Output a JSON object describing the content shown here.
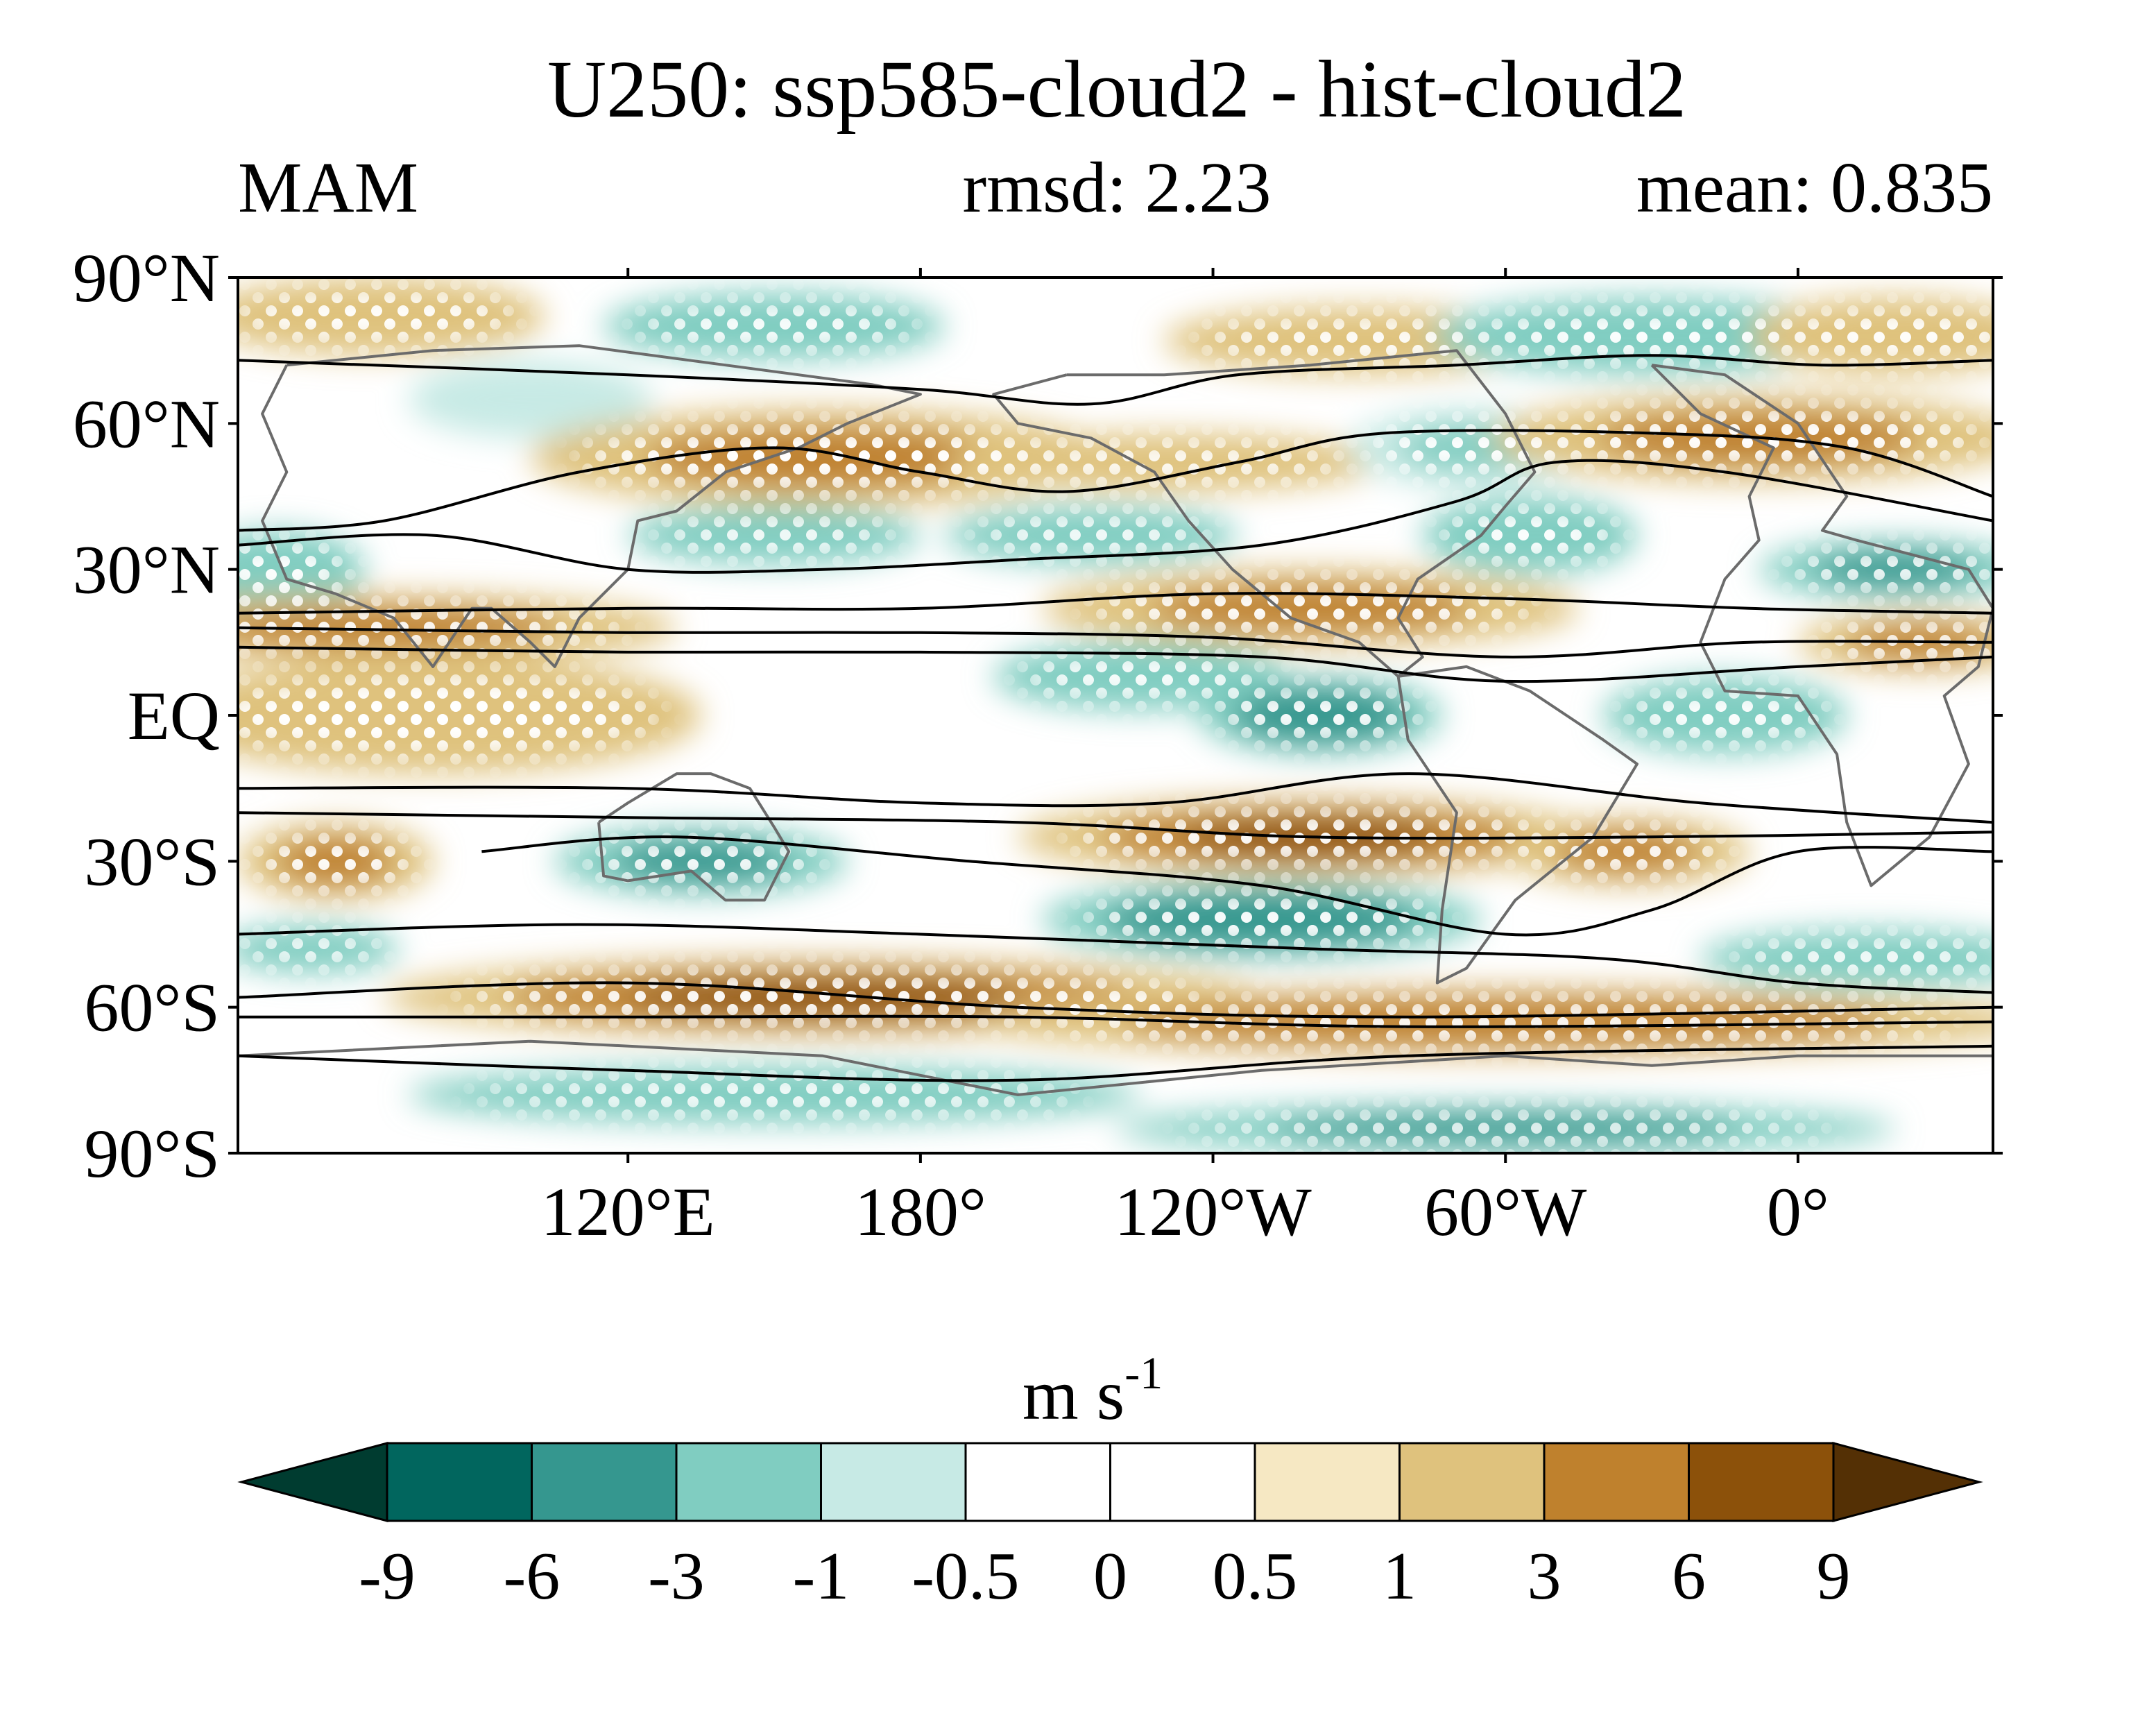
{
  "title": "U250: ssp585-cloud2 - hist-cloud2",
  "season": "MAM",
  "rmsd_label": "rmsd: 2.23",
  "mean_label": "mean: 0.835",
  "map": {
    "lat_ticks": [
      "90°N",
      "60°N",
      "30°N",
      "EQ",
      "30°S",
      "60°S",
      "90°S"
    ],
    "lon_ticks": [
      "120°E",
      "180°",
      "120°W",
      "60°W",
      "0°"
    ],
    "lon_range": [
      40,
      400
    ],
    "lat_range": [
      -90,
      90
    ],
    "stippling": "white dots mark significant areas",
    "contours": "black lines: climatological zonal wind"
  },
  "colorbar": {
    "unit_base": "m s",
    "unit_exp": "-1",
    "labels": [
      "-9",
      "-6",
      "-3",
      "-1",
      "-0.5",
      "0",
      "0.5",
      "1",
      "3",
      "6",
      "9"
    ],
    "colors": [
      "#003c30",
      "#01665e",
      "#35978f",
      "#80cdc1",
      "#c7eae5",
      "#ffffff",
      "#ffffff",
      "#f6e8c3",
      "#dfc27d",
      "#bf812d",
      "#8c510a",
      "#543005"
    ]
  },
  "chart_data": {
    "type": "heatmap",
    "title": "U250: ssp585-cloud2 - hist-cloud2",
    "subtitle_left": "MAM",
    "subtitle_center": "rmsd: 2.23",
    "subtitle_right": "mean: 0.835",
    "xlabel": "",
    "ylabel": "",
    "x_ticks": [
      "120°E",
      "180°",
      "120°W",
      "60°W",
      "0°"
    ],
    "y_ticks": [
      "90°N",
      "60°N",
      "30°N",
      "EQ",
      "30°S",
      "60°S",
      "90°S"
    ],
    "colorbar_levels": [
      -9,
      -6,
      -3,
      -1,
      -0.5,
      0,
      0.5,
      1,
      3,
      6,
      9
    ],
    "colorbar_unit": "m s-1",
    "anomaly_blobs": [
      {
        "lon": 68,
        "lat": 82,
        "w": 35,
        "h": 8,
        "v": 2
      },
      {
        "lon": 150,
        "lat": 80,
        "w": 35,
        "h": 7,
        "v": -2
      },
      {
        "lon": 270,
        "lat": 77,
        "w": 40,
        "h": 7,
        "v": 2
      },
      {
        "lon": 330,
        "lat": 78,
        "w": 45,
        "h": 8,
        "v": -2
      },
      {
        "lon": 380,
        "lat": 78,
        "w": 30,
        "h": 8,
        "v": 2
      },
      {
        "lon": 100,
        "lat": 65,
        "w": 25,
        "h": 8,
        "v": -1
      },
      {
        "lon": 160,
        "lat": 53,
        "w": 60,
        "h": 10,
        "v": 3
      },
      {
        "lon": 230,
        "lat": 52,
        "w": 45,
        "h": 6,
        "v": 1.5
      },
      {
        "lon": 293,
        "lat": 55,
        "w": 25,
        "h": 8,
        "v": -2.5
      },
      {
        "lon": 352,
        "lat": 57,
        "w": 55,
        "h": 9,
        "v": 3
      },
      {
        "lon": 48,
        "lat": 30,
        "w": 18,
        "h": 8,
        "v": -2
      },
      {
        "lon": 150,
        "lat": 37,
        "w": 30,
        "h": 6,
        "v": -2
      },
      {
        "lon": 215,
        "lat": 37,
        "w": 30,
        "h": 6,
        "v": -2
      },
      {
        "lon": 305,
        "lat": 37,
        "w": 22,
        "h": 8,
        "v": -2
      },
      {
        "lon": 380,
        "lat": 30,
        "w": 28,
        "h": 6,
        "v": -4
      },
      {
        "lon": 70,
        "lat": 18,
        "w": 60,
        "h": 7,
        "v": 4
      },
      {
        "lon": 260,
        "lat": 22,
        "w": 55,
        "h": 8,
        "v": 4
      },
      {
        "lon": 385,
        "lat": 15,
        "w": 25,
        "h": 6,
        "v": 3
      },
      {
        "lon": 80,
        "lat": 0,
        "w": 55,
        "h": 12,
        "v": 2
      },
      {
        "lon": 225,
        "lat": 8,
        "w": 30,
        "h": 7,
        "v": -3
      },
      {
        "lon": 262,
        "lat": 0,
        "w": 25,
        "h": 8,
        "v": -6
      },
      {
        "lon": 345,
        "lat": 0,
        "w": 25,
        "h": 8,
        "v": -2
      },
      {
        "lon": 260,
        "lat": -25,
        "w": 60,
        "h": 8,
        "v": 6
      },
      {
        "lon": 325,
        "lat": -28,
        "w": 25,
        "h": 7,
        "v": 4
      },
      {
        "lon": 135,
        "lat": -30,
        "w": 30,
        "h": 7,
        "v": -4
      },
      {
        "lon": 60,
        "lat": -30,
        "w": 20,
        "h": 8,
        "v": 3
      },
      {
        "lon": 250,
        "lat": -42,
        "w": 45,
        "h": 8,
        "v": -5
      },
      {
        "lon": 375,
        "lat": -50,
        "w": 35,
        "h": 6,
        "v": -3
      },
      {
        "lon": 55,
        "lat": -48,
        "w": 18,
        "h": 5,
        "v": -2
      },
      {
        "lon": 160,
        "lat": -58,
        "w": 90,
        "h": 8,
        "v": 6
      },
      {
        "lon": 300,
        "lat": -63,
        "w": 110,
        "h": 7,
        "v": 5
      },
      {
        "lon": 150,
        "lat": -78,
        "w": 75,
        "h": 6,
        "v": -3
      },
      {
        "lon": 300,
        "lat": -85,
        "w": 80,
        "h": 5,
        "v": -4
      }
    ],
    "contour_lines": [
      [
        [
          40,
          73
        ],
        [
          120,
          70
        ],
        [
          180,
          67
        ],
        [
          215,
          64
        ],
        [
          245,
          70
        ],
        [
          290,
          72
        ],
        [
          330,
          74
        ],
        [
          365,
          72
        ],
        [
          400,
          73
        ]
      ],
      [
        [
          40,
          38
        ],
        [
          70,
          40
        ],
        [
          110,
          50
        ],
        [
          150,
          55
        ],
        [
          180,
          50
        ],
        [
          210,
          46
        ],
        [
          245,
          52
        ],
        [
          275,
          58
        ],
        [
          330,
          58
        ],
        [
          370,
          55
        ],
        [
          400,
          45
        ]
      ],
      [
        [
          40,
          35
        ],
        [
          80,
          37
        ],
        [
          120,
          30
        ],
        [
          160,
          30
        ],
        [
          200,
          32
        ],
        [
          250,
          35
        ],
        [
          290,
          44
        ],
        [
          310,
          52
        ],
        [
          345,
          50
        ],
        [
          400,
          40
        ]
      ],
      [
        [
          40,
          21
        ],
        [
          120,
          22
        ],
        [
          180,
          22
        ],
        [
          240,
          25
        ],
        [
          300,
          24
        ],
        [
          350,
          22
        ],
        [
          400,
          21
        ]
      ],
      [
        [
          40,
          18
        ],
        [
          120,
          17
        ],
        [
          180,
          17
        ],
        [
          240,
          16
        ],
        [
          300,
          12
        ],
        [
          350,
          15
        ],
        [
          400,
          15
        ]
      ],
      [
        [
          40,
          14
        ],
        [
          120,
          13
        ],
        [
          180,
          13
        ],
        [
          250,
          12
        ],
        [
          300,
          7
        ],
        [
          360,
          10
        ],
        [
          400,
          12
        ]
      ],
      [
        [
          40,
          -15
        ],
        [
          120,
          -15
        ],
        [
          180,
          -18
        ],
        [
          230,
          -18
        ],
        [
          280,
          -12
        ],
        [
          340,
          -18
        ],
        [
          400,
          -22
        ]
      ],
      [
        [
          40,
          -20
        ],
        [
          120,
          -21
        ],
        [
          200,
          -22
        ],
        [
          260,
          -25
        ],
        [
          330,
          -25
        ],
        [
          400,
          -24
        ]
      ],
      [
        [
          90,
          -28
        ],
        [
          130,
          -25
        ],
        [
          190,
          -30
        ],
        [
          250,
          -35
        ],
        [
          300,
          -45
        ],
        [
          330,
          -40
        ],
        [
          360,
          -28
        ],
        [
          400,
          -28
        ]
      ],
      [
        [
          40,
          -45
        ],
        [
          110,
          -43
        ],
        [
          180,
          -45
        ],
        [
          260,
          -48
        ],
        [
          320,
          -50
        ],
        [
          360,
          -55
        ],
        [
          400,
          -57
        ]
      ],
      [
        [
          40,
          -58
        ],
        [
          120,
          -55
        ],
        [
          200,
          -60
        ],
        [
          280,
          -62
        ],
        [
          400,
          -60
        ]
      ],
      [
        [
          40,
          -62
        ],
        [
          120,
          -62
        ],
        [
          200,
          -62
        ],
        [
          280,
          -64
        ],
        [
          400,
          -63
        ]
      ],
      [
        [
          40,
          -70
        ],
        [
          120,
          -73
        ],
        [
          200,
          -75
        ],
        [
          280,
          -70
        ],
        [
          400,
          -68
        ]
      ]
    ],
    "land_outlines": [
      [
        [
          330,
          72
        ],
        [
          345,
          70
        ],
        [
          360,
          60
        ],
        [
          370,
          45
        ],
        [
          365,
          38
        ],
        [
          372,
          36
        ],
        [
          395,
          30
        ],
        [
          400,
          22
        ],
        [
          397,
          10
        ],
        [
          390,
          4
        ],
        [
          395,
          -10
        ],
        [
          387,
          -25
        ],
        [
          375,
          -35
        ],
        [
          370,
          -22
        ],
        [
          368,
          -8
        ],
        [
          360,
          4
        ],
        [
          345,
          5
        ],
        [
          340,
          15
        ],
        [
          345,
          28
        ],
        [
          352,
          36
        ],
        [
          350,
          45
        ],
        [
          355,
          55
        ],
        [
          340,
          62
        ],
        [
          330,
          72
        ]
      ],
      [
        [
          210,
          70
        ],
        [
          230,
          70
        ],
        [
          260,
          72
        ],
        [
          290,
          75
        ],
        [
          300,
          62
        ],
        [
          306,
          50
        ],
        [
          300,
          43
        ],
        [
          295,
          37
        ],
        [
          282,
          28
        ],
        [
          278,
          20
        ],
        [
          283,
          12
        ],
        [
          278,
          8
        ],
        [
          270,
          15
        ],
        [
          256,
          20
        ],
        [
          244,
          30
        ],
        [
          235,
          40
        ],
        [
          228,
          50
        ],
        [
          215,
          57
        ],
        [
          200,
          60
        ],
        [
          195,
          66
        ],
        [
          210,
          70
        ]
      ],
      [
        [
          278,
          8
        ],
        [
          292,
          10
        ],
        [
          305,
          5
        ],
        [
          320,
          -5
        ],
        [
          327,
          -10
        ],
        [
          318,
          -25
        ],
        [
          302,
          -38
        ],
        [
          292,
          -52
        ],
        [
          286,
          -55
        ],
        [
          287,
          -40
        ],
        [
          290,
          -20
        ],
        [
          280,
          -5
        ],
        [
          278,
          8
        ]
      ],
      [
        [
          50,
          72
        ],
        [
          80,
          75
        ],
        [
          110,
          76
        ],
        [
          140,
          72
        ],
        [
          170,
          68
        ],
        [
          180,
          66
        ],
        [
          165,
          60
        ],
        [
          155,
          55
        ],
        [
          140,
          50
        ],
        [
          130,
          42
        ],
        [
          122,
          40
        ],
        [
          120,
          30
        ],
        [
          110,
          20
        ],
        [
          105,
          10
        ],
        [
          100,
          15
        ],
        [
          92,
          22
        ],
        [
          88,
          22
        ],
        [
          80,
          10
        ],
        [
          72,
          20
        ],
        [
          60,
          25
        ],
        [
          50,
          28
        ],
        [
          45,
          40
        ],
        [
          50,
          50
        ],
        [
          45,
          62
        ],
        [
          50,
          72
        ]
      ],
      [
        [
          114,
          -22
        ],
        [
          120,
          -18
        ],
        [
          130,
          -12
        ],
        [
          137,
          -12
        ],
        [
          145,
          -15
        ],
        [
          150,
          -23
        ],
        [
          153,
          -28
        ],
        [
          148,
          -38
        ],
        [
          140,
          -38
        ],
        [
          133,
          -32
        ],
        [
          120,
          -34
        ],
        [
          115,
          -33
        ],
        [
          114,
          -22
        ]
      ],
      [
        [
          40,
          -70
        ],
        [
          100,
          -67
        ],
        [
          160,
          -70
        ],
        [
          200,
          -78
        ],
        [
          250,
          -73
        ],
        [
          300,
          -70
        ],
        [
          330,
          -72
        ],
        [
          360,
          -70
        ],
        [
          400,
          -70
        ]
      ]
    ]
  }
}
